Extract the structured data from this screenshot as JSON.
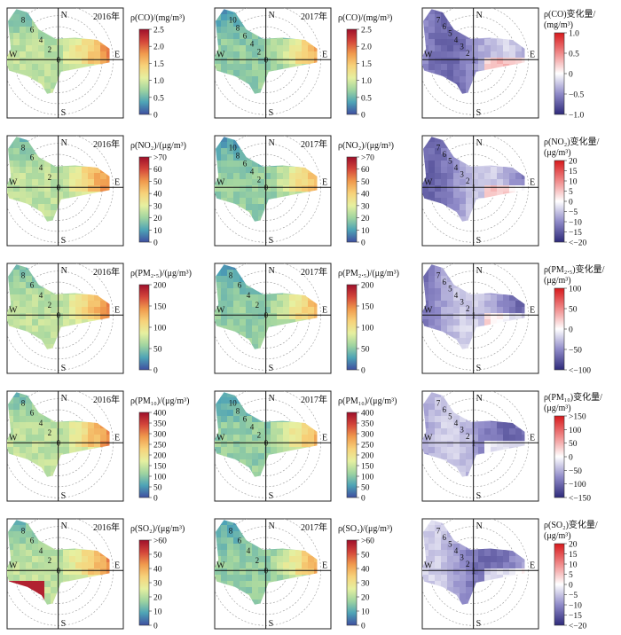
{
  "figure": {
    "pollutant_rows": [
      {
        "key": "CO",
        "y2016_label": "2016年",
        "y2017_label": "2017年",
        "abs_unit": "ρ(CO)/(mg/m³)",
        "abs_ticks": [
          "2.5",
          "2.0",
          "1.5",
          "1.0",
          "0.5",
          "0"
        ],
        "diff_unit_line1": "ρ(CO)变化量/",
        "diff_unit_line2": "(mg/m³)",
        "diff_ticks": [
          "1.0",
          "0.5",
          "0",
          "−0.5",
          "−1.0"
        ],
        "rings_2016": [
          "8",
          "6",
          "4",
          "2",
          "0"
        ],
        "rings_2017": [
          "10",
          "8",
          "6",
          "4",
          "2",
          "0"
        ],
        "rings_diff": [
          "7",
          "6",
          "5",
          "4",
          "3",
          "2",
          "1"
        ]
      },
      {
        "key": "NO2",
        "y2016_label": "2016年",
        "y2017_label": "2017年",
        "abs_unit": "ρ(NO₂)/(μg/m³)",
        "abs_ticks": [
          ">70",
          "60",
          "50",
          "40",
          "30",
          "20",
          "10",
          "0"
        ],
        "diff_unit_line1": "ρ(NO₂)变化量/",
        "diff_unit_line2": "(μg/m³)",
        "diff_ticks": [
          "20",
          "15",
          "10",
          "5",
          "0",
          "−5",
          "−10",
          "−15",
          "<−20"
        ],
        "rings_2016": [
          "8",
          "6",
          "4",
          "2",
          "0"
        ],
        "rings_2017": [
          "10",
          "8",
          "6",
          "4",
          "2",
          "0"
        ],
        "rings_diff": [
          "7",
          "6",
          "5",
          "4",
          "3",
          "2",
          "1"
        ]
      },
      {
        "key": "PM2.5",
        "y2016_label": "2016年",
        "y2017_label": "2017年",
        "abs_unit": "ρ(PM₂.₅)/(μg/m³)",
        "abs_ticks": [
          "200",
          "150",
          "100",
          "50",
          "0"
        ],
        "diff_unit_line1": "ρ(PM₂.₅)变化量/",
        "diff_unit_line2": "(μg/m³)",
        "diff_ticks": [
          "100",
          "50",
          "0",
          "−50",
          "<−100"
        ],
        "rings_2016": [
          "8",
          "6",
          "4",
          "2",
          "0"
        ],
        "rings_2017": [
          "8",
          "6",
          "4",
          "2",
          "0"
        ],
        "rings_diff": [
          "7",
          "6",
          "5",
          "4",
          "3",
          "2",
          "1"
        ]
      },
      {
        "key": "PM10",
        "y2016_label": "2016年",
        "y2017_label": "2017年",
        "abs_unit": "ρ(PM₁₀)/(μg/m³)",
        "abs_ticks": [
          "400",
          "350",
          "300",
          "250",
          "200",
          "150",
          "100",
          "50",
          "0"
        ],
        "diff_unit_line1": "ρ(PM₁₀)变化量/",
        "diff_unit_line2": "(μg/m³)",
        "diff_ticks": [
          ">150",
          "100",
          "50",
          "0",
          "−50",
          "−100",
          "<−150"
        ],
        "rings_2016": [
          "8",
          "6",
          "4",
          "2",
          "0"
        ],
        "rings_2017": [
          "10",
          "8",
          "6",
          "4",
          "2",
          "0"
        ],
        "rings_diff": [
          "7",
          "6",
          "5",
          "4",
          "3",
          "2",
          "1"
        ]
      },
      {
        "key": "SO2",
        "y2016_label": "2016年",
        "y2017_label": "2017年",
        "abs_unit": "ρ(SO₂)/(μg/m³)",
        "abs_ticks": [
          ">60",
          "50",
          "40",
          "30",
          "20",
          "10",
          "0"
        ],
        "diff_unit_line1": "ρ(SO₂)变化量/",
        "diff_unit_line2": "(μg/m³)",
        "diff_ticks": [
          "20",
          "15",
          "10",
          "5",
          "0",
          "−5",
          "−10",
          "−15",
          "<−20"
        ],
        "rings_2016": [
          "8",
          "6",
          "4",
          "2",
          "0"
        ],
        "rings_2017": [
          "8",
          "6",
          "4",
          "2",
          "0"
        ],
        "rings_diff": [
          "7",
          "6",
          "5",
          "4",
          "3",
          "2",
          "1"
        ]
      }
    ],
    "compass": {
      "north": "N",
      "south": "S",
      "east": "E",
      "west": "W"
    }
  },
  "chart_data": {
    "type": "heatmap",
    "description_units": "bivariate polar plots of pollutant concentration vs wind direction and wind speed (ring labels are wind speed); columns: 2016, 2017, change",
    "colors": {
      "abs_scale": [
        "#3f4fa0",
        "#4ea3b6",
        "#9fd4a0",
        "#e6f0a0",
        "#f7d27a",
        "#f09a4d",
        "#d4463a",
        "#9e0f2a"
      ],
      "diff_scale": [
        "#2e2a7a",
        "#8f8ac8",
        "#ffffff",
        "#f08a8a",
        "#d7191c"
      ]
    }
  }
}
